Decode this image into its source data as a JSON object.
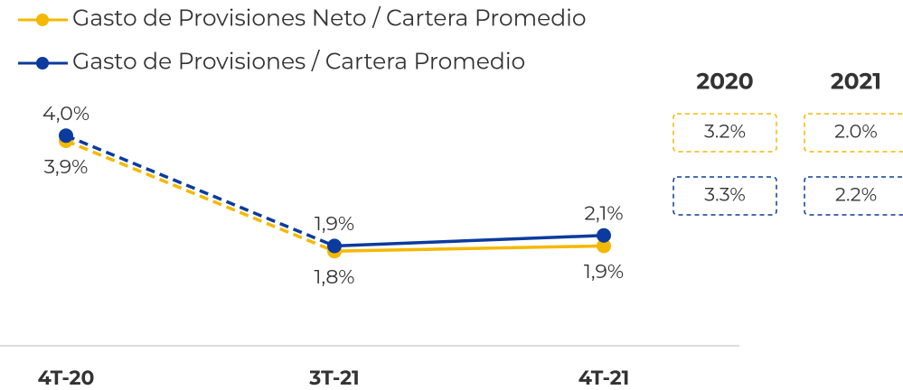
{
  "chart_data": {
    "type": "line",
    "categories": [
      "4T-20",
      "3T-21",
      "4T-21"
    ],
    "ylim": [
      0,
      5
    ],
    "series": [
      {
        "name": "Gasto de Provisiones Neto / Cartera Promedio",
        "color": "#f5b800",
        "values": [
          3.9,
          1.8,
          1.9
        ],
        "value_labels": [
          "3,9%",
          "1,8%",
          "1,9%"
        ],
        "label_position": "below",
        "dashed_segments": [
          0
        ]
      },
      {
        "name": "Gasto de Provisiones / Cartera Promedio",
        "color": "#0b3b9e",
        "values": [
          4.0,
          1.9,
          2.1
        ],
        "value_labels": [
          "4,0%",
          "1,9%",
          "2,1%"
        ],
        "label_position": "above",
        "dashed_segments": [
          0
        ]
      }
    ],
    "summary_table": {
      "years": [
        "2020",
        "2021"
      ],
      "rows": [
        {
          "values": [
            3.2,
            2.0
          ],
          "value_labels": [
            "3.2%",
            "2.0%"
          ]
        },
        {
          "values": [
            3.3,
            2.2
          ],
          "value_labels": [
            "3.3%",
            "2.2%"
          ]
        }
      ]
    }
  }
}
